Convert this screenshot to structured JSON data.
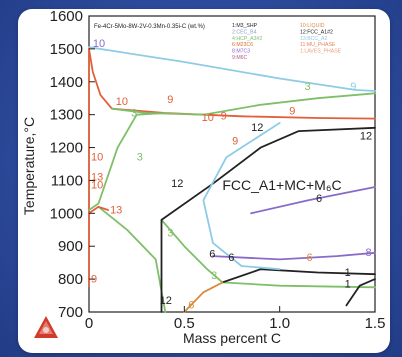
{
  "chart_data": {
    "type": "line",
    "title": "Fe-4Cr-5Mo-8W-2V-0.3Mn-0.35i-C (wt.%)",
    "xlabel": "Mass percent C",
    "ylabel": "Temperature,°C",
    "xlim": [
      0,
      1.5
    ],
    "ylim": [
      700,
      1600
    ],
    "xticks": [
      "0",
      "0.5",
      "1.0",
      "1.5"
    ],
    "yticks": [
      "700",
      "800",
      "900",
      "1000",
      "1100",
      "1200",
      "1300",
      "1400",
      "1500",
      "1600"
    ],
    "grid": false,
    "region_label": "FCC_A1+MC+M₆C",
    "legend": [
      {
        "num": "1",
        "label": "1:M3_SHP",
        "color": "#222222"
      },
      {
        "num": "2",
        "label": "2:CEC_B4",
        "color": "#8aa0c8"
      },
      {
        "num": "3",
        "label": "4:HCP_A3#2",
        "color": "#7fbf6a"
      },
      {
        "num": "4",
        "label": "6:M23C6",
        "color": "#d96a2f"
      },
      {
        "num": "5",
        "label": "8:M7C3",
        "color": "#8a6ac9"
      },
      {
        "num": "6",
        "label": "9:M6C",
        "color": "#b85c8a"
      },
      {
        "num": "7",
        "label": "10:LIQUID",
        "color": "#e08a4a"
      },
      {
        "num": "8",
        "label": "12:FCC_A1#2",
        "color": "#222222"
      },
      {
        "num": "9",
        "label": "13:BCC_A2",
        "color": "#8ecce6"
      },
      {
        "num": "10",
        "label": "11:MU_PHASE",
        "color": "#e8875a"
      },
      {
        "num": "11",
        "label": "1:LAVES_PHASE",
        "color": "#e8a07a"
      }
    ],
    "series": [
      {
        "id": "liquidus-blue",
        "label": "10",
        "color": "#8ecce6",
        "points": [
          [
            0,
            1505
          ],
          [
            0.5,
            1460
          ],
          [
            1.0,
            1410
          ],
          [
            1.4,
            1375
          ],
          [
            1.5,
            1372
          ]
        ]
      },
      {
        "id": "red-upper",
        "label": "10",
        "color": "#e0603a",
        "points": [
          [
            0,
            1500
          ],
          [
            0.02,
            1430
          ],
          [
            0.06,
            1360
          ],
          [
            0.12,
            1318
          ],
          [
            0.4,
            1305
          ],
          [
            0.8,
            1295
          ],
          [
            1.2,
            1290
          ],
          [
            1.5,
            1288
          ]
        ]
      },
      {
        "id": "red-left",
        "label": "9",
        "color": "#e0603a",
        "points": [
          [
            0,
            1500
          ],
          [
            0,
            1000
          ],
          [
            0,
            800
          ],
          [
            0,
            780
          ]
        ]
      },
      {
        "id": "green-solidus",
        "label": "3",
        "color": "#7fbf6a",
        "points": [
          [
            0.12,
            1318
          ],
          [
            0.3,
            1305
          ],
          [
            0.6,
            1300
          ],
          [
            0.9,
            1330
          ],
          [
            1.2,
            1350
          ],
          [
            1.5,
            1365
          ]
        ]
      },
      {
        "id": "green-left",
        "label": "3",
        "color": "#7fbf6a",
        "points": [
          [
            0,
            1010
          ],
          [
            0.05,
            1030
          ],
          [
            0.15,
            1200
          ],
          [
            0.25,
            1300
          ],
          [
            0.4,
            1305
          ]
        ]
      },
      {
        "id": "green-mid",
        "label": "3",
        "color": "#7fbf6a",
        "points": [
          [
            0.05,
            1020
          ],
          [
            0.2,
            950
          ],
          [
            0.35,
            860
          ],
          [
            0.4,
            700
          ]
        ]
      },
      {
        "id": "green-right",
        "label": "3",
        "color": "#7fbf6a",
        "points": [
          [
            0.38,
            980
          ],
          [
            0.5,
            900
          ],
          [
            0.62,
            830
          ],
          [
            0.7,
            790
          ],
          [
            1.0,
            780
          ],
          [
            1.5,
            775
          ]
        ]
      },
      {
        "id": "black-12",
        "label": "12",
        "color": "#222222",
        "points": [
          [
            0.38,
            700
          ],
          [
            0.38,
            980
          ],
          [
            0.65,
            1090
          ],
          [
            0.9,
            1200
          ],
          [
            1.1,
            1250
          ],
          [
            1.5,
            1260
          ]
        ]
      },
      {
        "id": "black-lower",
        "label": "1",
        "color": "#222222",
        "points": [
          [
            0.7,
            790
          ],
          [
            0.9,
            830
          ],
          [
            1.2,
            820
          ],
          [
            1.5,
            815
          ]
        ]
      },
      {
        "id": "blue-v",
        "label": "4",
        "color": "#8ecce6",
        "points": [
          [
            1.0,
            1275
          ],
          [
            0.72,
            1170
          ],
          [
            0.6,
            1040
          ],
          [
            0.65,
            910
          ],
          [
            0.8,
            840
          ],
          [
            1.0,
            830
          ]
        ]
      },
      {
        "id": "purple-6",
        "label": "6",
        "color": "#8a6ac9",
        "points": [
          [
            0.85,
            1000
          ],
          [
            1.15,
            1040
          ],
          [
            1.5,
            1080
          ]
        ]
      },
      {
        "id": "purple-8",
        "label": "8",
        "color": "#8a6ac9",
        "points": [
          [
            0.65,
            870
          ],
          [
            1.0,
            860
          ],
          [
            1.3,
            870
          ],
          [
            1.5,
            880
          ]
        ]
      },
      {
        "id": "orange-13",
        "label": "13",
        "color": "#e0603a",
        "points": [
          [
            0,
            1000
          ],
          [
            0.05,
            1020
          ],
          [
            0.1,
            1010
          ]
        ]
      },
      {
        "id": "orange-6",
        "label": "6",
        "color": "#d98a3a",
        "points": [
          [
            0.5,
            700
          ],
          [
            0.6,
            760
          ],
          [
            0.7,
            790
          ]
        ]
      },
      {
        "id": "black-1",
        "label": "1",
        "color": "#222222",
        "points": [
          [
            1.35,
            720
          ],
          [
            1.42,
            780
          ],
          [
            1.5,
            800
          ]
        ]
      }
    ],
    "annotations": [
      {
        "text": "10",
        "x": 0.01,
        "y": 1505,
        "color": "#8a6ac9"
      },
      {
        "text": "10",
        "x": 0.13,
        "y": 1330,
        "color": "#e0603a"
      },
      {
        "text": "9",
        "x": 0.4,
        "y": 1335,
        "color": "#e0603a"
      },
      {
        "text": "3",
        "x": 0.21,
        "y": 1295,
        "color": "#7fbf6a"
      },
      {
        "text": "10",
        "x": 0.58,
        "y": 1280,
        "color": "#e0603a"
      },
      {
        "text": "9",
        "x": 0.68,
        "y": 1285,
        "color": "#e0603a"
      },
      {
        "text": "9",
        "x": 1.04,
        "y": 1300,
        "color": "#e0603a"
      },
      {
        "text": "3",
        "x": 1.12,
        "y": 1375,
        "color": "#7fbf6a"
      },
      {
        "text": "9",
        "x": 1.36,
        "y": 1375,
        "color": "#8ecce6"
      },
      {
        "text": "12",
        "x": 0.84,
        "y": 1250,
        "color": "#222222"
      },
      {
        "text": "12",
        "x": 1.41,
        "y": 1225,
        "color": "#222222"
      },
      {
        "text": "9",
        "x": 0.74,
        "y": 1210,
        "color": "#e0603a"
      },
      {
        "text": "3",
        "x": 0.24,
        "y": 1160,
        "color": "#7fbf6a"
      },
      {
        "text": "10",
        "x": 0.0,
        "y": 1160,
        "color": "#e0603a"
      },
      {
        "text": "13",
        "x": 0.0,
        "y": 1100,
        "color": "#e0603a"
      },
      {
        "text": "10",
        "x": 0.0,
        "y": 1075,
        "color": "#e0603a"
      },
      {
        "text": "13",
        "x": 0.1,
        "y": 1000,
        "color": "#e0603a"
      },
      {
        "text": "12",
        "x": 0.42,
        "y": 1080,
        "color": "#222222"
      },
      {
        "text": "3",
        "x": 0.4,
        "y": 930,
        "color": "#7fbf6a"
      },
      {
        "text": "6",
        "x": 0.62,
        "y": 865,
        "color": "#222222"
      },
      {
        "text": "6",
        "x": 0.72,
        "y": 855,
        "color": "#222222"
      },
      {
        "text": "3",
        "x": 0.63,
        "y": 800,
        "color": "#7fbf6a"
      },
      {
        "text": "9",
        "x": 0.0,
        "y": 790,
        "color": "#e0603a"
      },
      {
        "text": "12",
        "x": 0.36,
        "y": 725,
        "color": "#222222"
      },
      {
        "text": "6",
        "x": 0.51,
        "y": 710,
        "color": "#d98a3a"
      },
      {
        "text": "1",
        "x": 1.33,
        "y": 810,
        "color": "#222222"
      },
      {
        "text": "1",
        "x": 1.33,
        "y": 775,
        "color": "#222222"
      },
      {
        "text": "6",
        "x": 1.13,
        "y": 855,
        "color": "#d98a3a"
      },
      {
        "text": "8",
        "x": 1.44,
        "y": 870,
        "color": "#8a6ac9"
      },
      {
        "text": "6",
        "x": 1.18,
        "y": 1035,
        "color": "#222222"
      }
    ]
  },
  "branding": {
    "logo": "thermo-calc-logo-triangle"
  }
}
